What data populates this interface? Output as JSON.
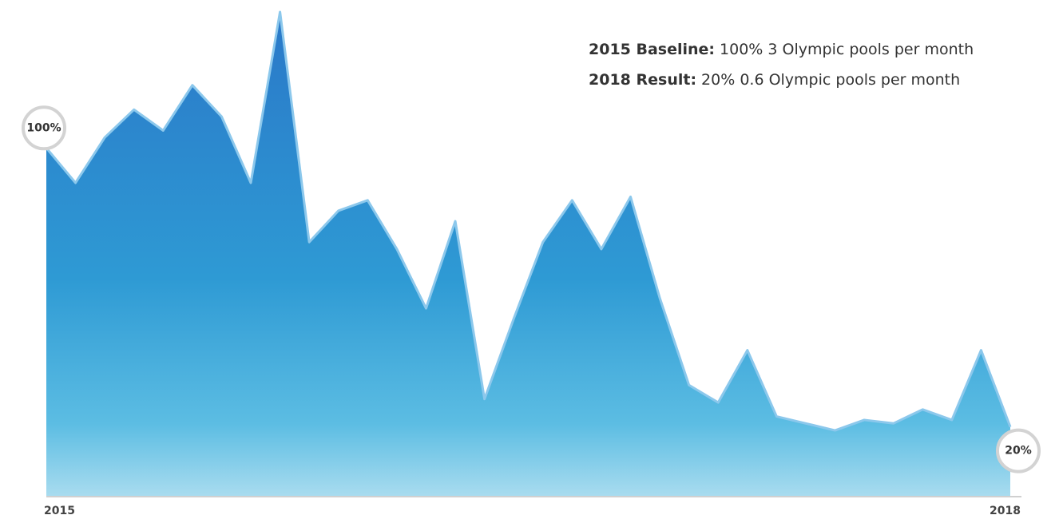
{
  "chart_data": {
    "type": "area",
    "categories": [
      "2015",
      null,
      null,
      null,
      null,
      null,
      null,
      null,
      null,
      null,
      null,
      null,
      null,
      null,
      null,
      null,
      null,
      null,
      null,
      null,
      null,
      null,
      null,
      null,
      null,
      null,
      null,
      null,
      null,
      null,
      null,
      null,
      null,
      "2018"
    ],
    "values": [
      100,
      90,
      103,
      111,
      105,
      118,
      109,
      90,
      139,
      73,
      82,
      85,
      71,
      54,
      79,
      28,
      51,
      73,
      85,
      71,
      86,
      57,
      32,
      27,
      42,
      23,
      21,
      19,
      22,
      21,
      25,
      22,
      42,
      20
    ],
    "value_labels": [
      "100%",
      null,
      null,
      null,
      null,
      null,
      null,
      null,
      null,
      null,
      null,
      null,
      null,
      null,
      null,
      null,
      null,
      null,
      null,
      null,
      null,
      null,
      null,
      null,
      null,
      null,
      null,
      null,
      null,
      null,
      null,
      null,
      null,
      "20%"
    ],
    "color": "#2f8fd0",
    "annotations": [
      {
        "label": "2015 Baseline:",
        "text": "100% 3 Olympic pools per month"
      },
      {
        "label": "2018 Result:",
        "text": "20% 0.6 Olympic pools per month"
      }
    ]
  }
}
